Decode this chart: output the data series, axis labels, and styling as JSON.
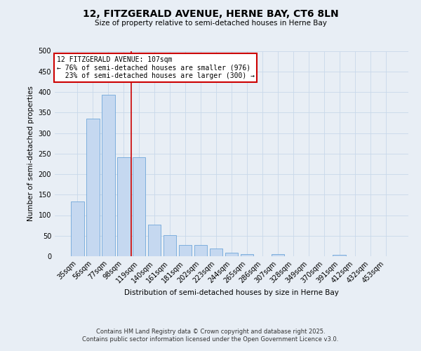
{
  "title_line1": "12, FITZGERALD AVENUE, HERNE BAY, CT6 8LN",
  "title_line2": "Size of property relative to semi-detached houses in Herne Bay",
  "bar_labels": [
    "35sqm",
    "56sqm",
    "77sqm",
    "98sqm",
    "119sqm",
    "140sqm",
    "161sqm",
    "181sqm",
    "202sqm",
    "223sqm",
    "244sqm",
    "265sqm",
    "286sqm",
    "307sqm",
    "328sqm",
    "349sqm",
    "370sqm",
    "391sqm",
    "412sqm",
    "432sqm",
    "453sqm"
  ],
  "bar_values": [
    134,
    335,
    393,
    241,
    241,
    77,
    52,
    27,
    27,
    19,
    9,
    5,
    0,
    5,
    0,
    0,
    0,
    3,
    0,
    0,
    0
  ],
  "bar_color": "#c5d8f0",
  "bar_edge_color": "#5b9bd5",
  "grid_color": "#c8d8ea",
  "background_color": "#e8eef5",
  "ylabel": "Number of semi-detached properties",
  "xlabel": "Distribution of semi-detached houses by size in Herne Bay",
  "ylim": [
    0,
    500
  ],
  "yticks": [
    0,
    50,
    100,
    150,
    200,
    250,
    300,
    350,
    400,
    450,
    500
  ],
  "property_label": "12 FITZGERALD AVENUE: 107sqm",
  "pct_smaller": 76,
  "pct_larger": 23,
  "count_smaller": 976,
  "count_larger": 300,
  "red_line_x": 3.5,
  "annotation_box_color": "#ffffff",
  "annotation_box_edge": "#cc0000",
  "red_line_color": "#cc0000",
  "footer_line1": "Contains HM Land Registry data © Crown copyright and database right 2025.",
  "footer_line2": "Contains public sector information licensed under the Open Government Licence v3.0."
}
